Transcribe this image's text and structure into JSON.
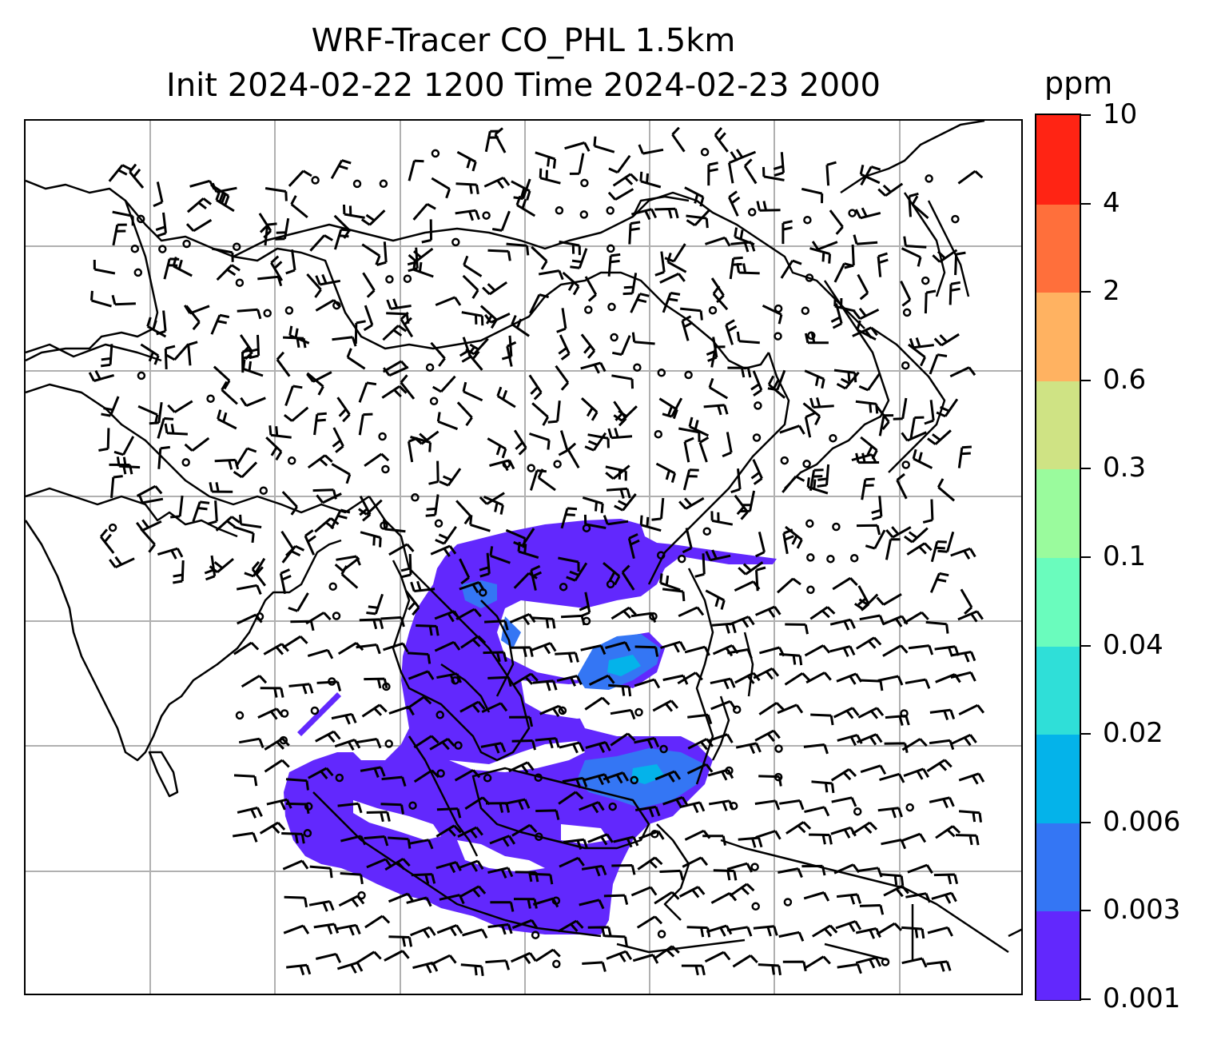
{
  "title": {
    "line1": "WRF-Tracer CO_PHL 1.5km",
    "line2": "Init 2024-02-22 1200 Time 2024-02-23 2000"
  },
  "colorbar": {
    "unit": "ppm",
    "levels": [
      "0.001",
      "0.003",
      "0.006",
      "0.02",
      "0.04",
      "0.1",
      "0.3",
      "0.6",
      "2",
      "4",
      "10"
    ],
    "colors": [
      "#6228fd",
      "#3476f4",
      "#04b3ea",
      "#2fdfd8",
      "#6afcbd",
      "#9afb9d",
      "#cfe384",
      "#ffb261",
      "#ff6f3b",
      "#ff2414"
    ]
  },
  "map": {
    "coastline_color": "#000000",
    "gridline_color": "#b0b0b0",
    "plume_colors": {
      "low": "#6228fd",
      "mid": "#3476f4",
      "high": "#04b3ea"
    }
  }
}
